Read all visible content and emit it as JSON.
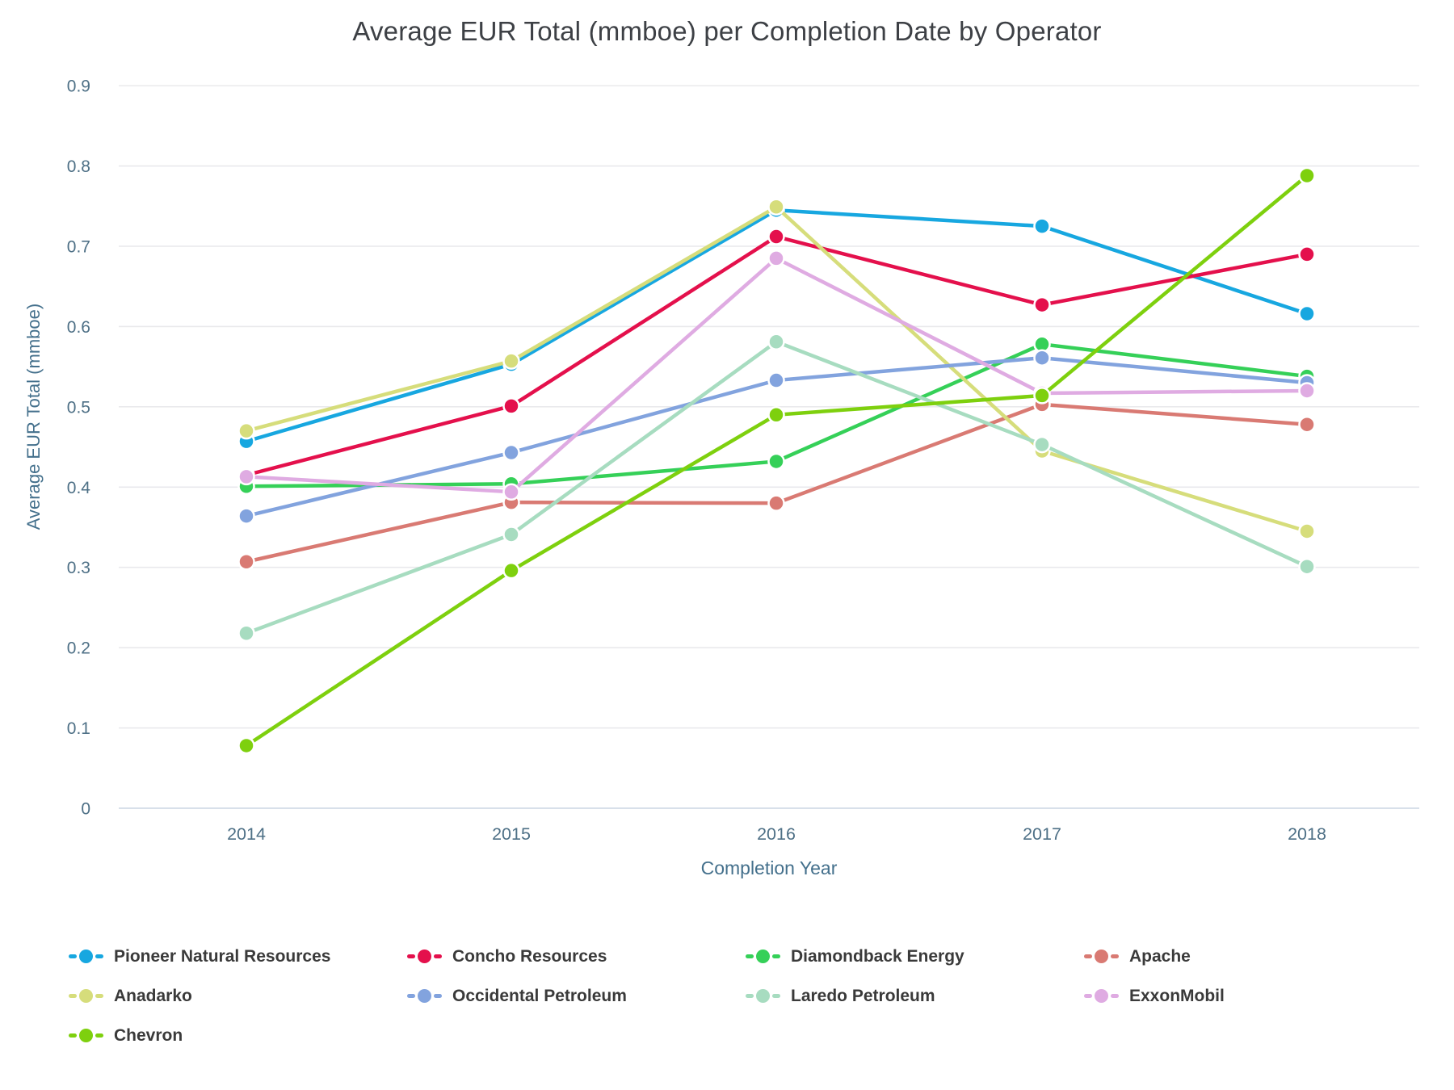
{
  "title": "Average EUR Total (mmboe) per Completion Date by Operator",
  "chart_data": {
    "type": "line",
    "x": [
      2014,
      2015,
      2016,
      2017,
      2018
    ],
    "xlabel": "Completion Year",
    "ylabel": "Average EUR Total (mmboe)",
    "ylim": [
      0,
      0.9
    ],
    "ytick_step": 0.1,
    "grid": true,
    "legend_position": "bottom",
    "series": [
      {
        "name": "Pioneer Natural Resources",
        "color": "#17a7e0",
        "values": [
          0.457,
          0.553,
          0.745,
          0.725,
          0.616
        ]
      },
      {
        "name": "Concho Resources",
        "color": "#e4104c",
        "values": [
          0.415,
          0.501,
          0.712,
          0.627,
          0.69
        ]
      },
      {
        "name": "Diamondback Energy",
        "color": "#35d058",
        "values": [
          0.401,
          0.404,
          0.432,
          0.578,
          0.538
        ]
      },
      {
        "name": "Apache",
        "color": "#d97a73",
        "values": [
          0.307,
          0.381,
          0.38,
          0.503,
          0.478
        ]
      },
      {
        "name": "Anadarko",
        "color": "#d6dd7b",
        "values": [
          0.47,
          0.557,
          0.749,
          0.445,
          0.345
        ]
      },
      {
        "name": "Occidental Petroleum",
        "color": "#82a3de",
        "values": [
          0.364,
          0.443,
          0.533,
          0.561,
          0.53
        ]
      },
      {
        "name": "Laredo Petroleum",
        "color": "#a7dcc0",
        "values": [
          0.218,
          0.341,
          0.581,
          0.453,
          0.301
        ]
      },
      {
        "name": "ExxonMobil",
        "color": "#dfabe2",
        "values": [
          0.413,
          0.394,
          0.685,
          0.517,
          0.52
        ]
      },
      {
        "name": "Chevron",
        "color": "#7ed00e",
        "values": [
          0.078,
          0.296,
          0.49,
          0.514,
          0.788
        ]
      }
    ]
  },
  "colors": {
    "background": "#ffffff",
    "title_text": "#3d4045",
    "axis_title_text": "#44708c",
    "tick_label_text": "#4e7086",
    "gridline": "#e9e9ec",
    "zero_line": "#ccd6e4",
    "legend_text": "#3a3a3a",
    "marker_ring": "#ffffff"
  }
}
